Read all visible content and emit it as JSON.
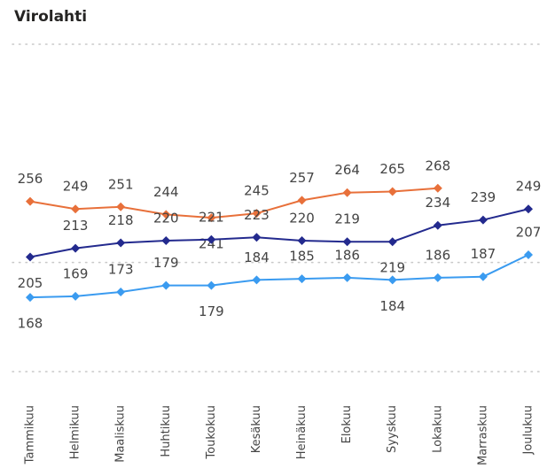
{
  "chart_data": {
    "type": "line",
    "title": "Virolahti",
    "categories": [
      "Tammikuu",
      "Helmikuu",
      "Maaliskuu",
      "Huhtikuu",
      "Toukokuu",
      "Kesäkuu",
      "Heinäkuu",
      "Elokuu",
      "Syyskuu",
      "Lokakuu",
      "Marraskuu",
      "Joulukuu"
    ],
    "series": [
      {
        "color": "#e8703a",
        "values": [
          256,
          249,
          251,
          244,
          241,
          245,
          257,
          264,
          265,
          268,
          null,
          null
        ]
      },
      {
        "color": "#232a8e",
        "values": [
          205,
          213,
          218,
          220,
          221,
          223,
          220,
          219,
          219,
          234,
          239,
          249
        ]
      },
      {
        "color": "#3a9bf0",
        "values": [
          168,
          169,
          173,
          179,
          179,
          184,
          185,
          186,
          184,
          186,
          187,
          207
        ]
      }
    ],
    "ylim": [
      100,
      400
    ],
    "yticks": [
      100,
      200,
      400
    ],
    "grid": true
  }
}
